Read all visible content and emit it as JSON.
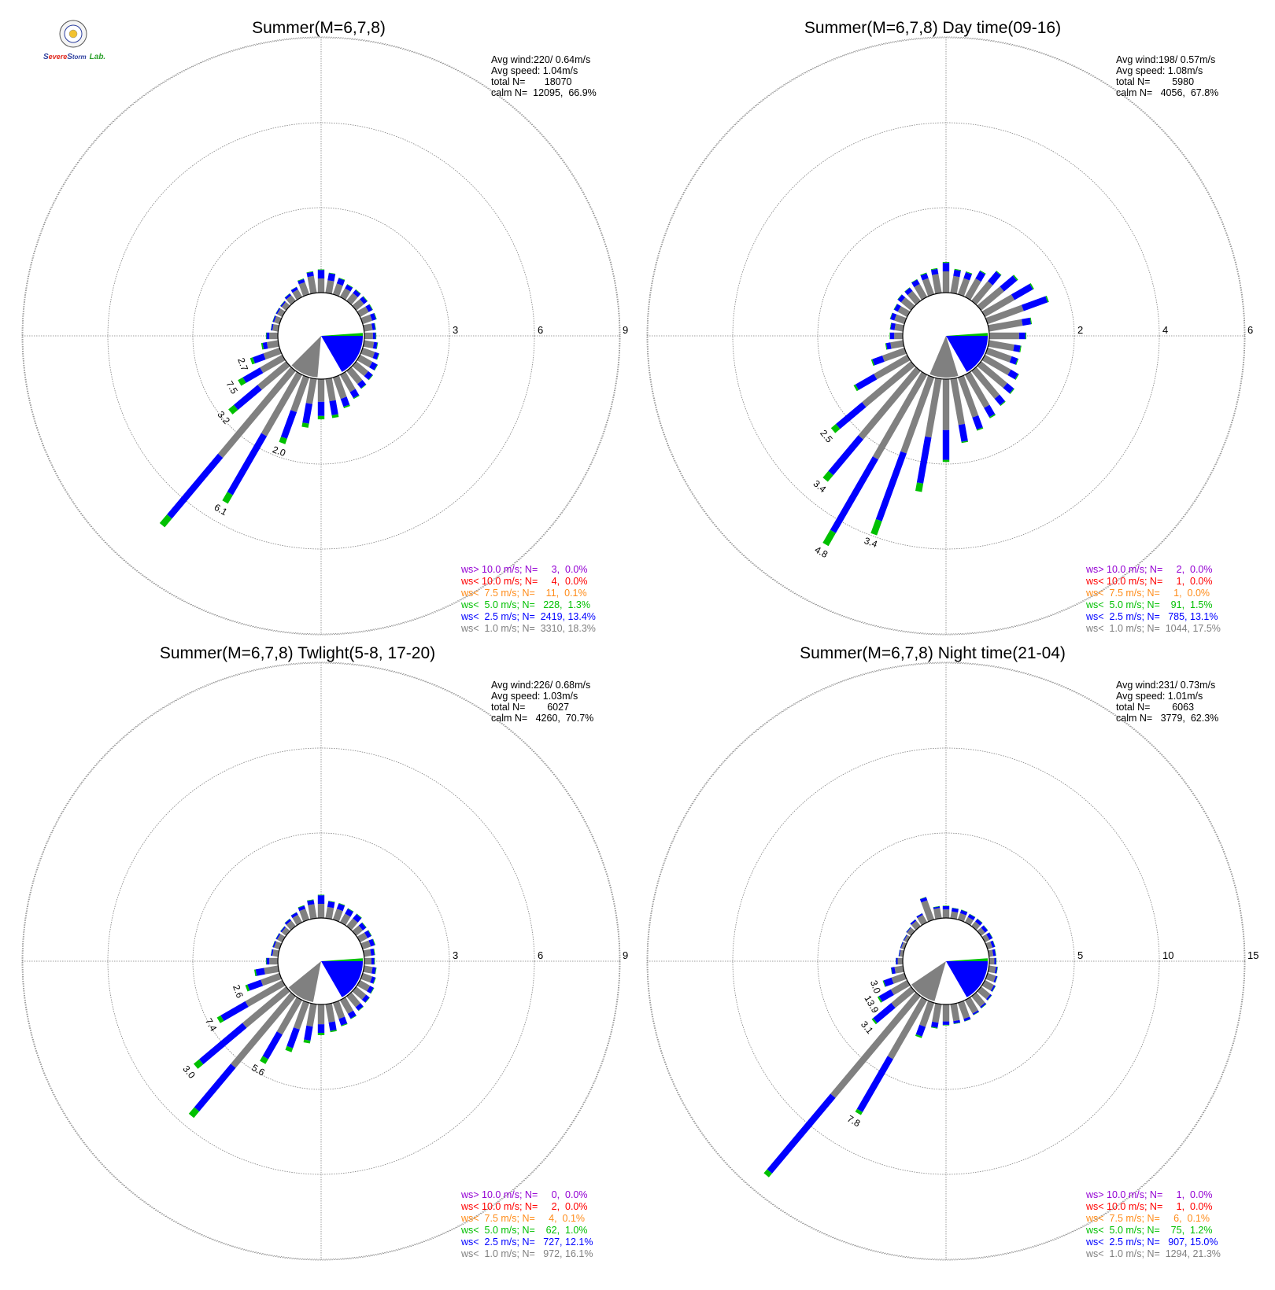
{
  "logo": {
    "text": [
      "S",
      "evere",
      "S",
      "torm",
      "Lab."
    ],
    "colors": [
      "#2c3e9e",
      "#e0261b",
      "#2ca02c"
    ]
  },
  "colors": {
    "calm_ring": "#000000",
    "grid": "#808080",
    "bin_lt1": "#808080",
    "bin_lt2_5": "#0000ff",
    "bin_lt5": "#00c000",
    "bin_lt7_5": "#ff8c1a",
    "bin_lt10": "#ff0000",
    "bin_gt10": "#9400d3"
  },
  "chart_data": [
    {
      "type": "windrose",
      "title": "Summer(M=6,7,8)",
      "rings": [
        3,
        6,
        9
      ],
      "stats": [
        "Avg wind:220/ 0.64m/s",
        "Avg speed: 1.04m/s",
        "total N=       18070",
        "calm N=  12095,  66.9%"
      ],
      "legend": [
        {
          "text": "ws> 10.0 m/s; N=     3,  0.0%",
          "color": "#9400d3"
        },
        {
          "text": "ws< 10.0 m/s; N=     4,  0.0%",
          "color": "#ff0000"
        },
        {
          "text": "ws<  7.5 m/s; N=    11,  0.1%",
          "color": "#ff8c1a"
        },
        {
          "text": "ws<  5.0 m/s; N=   228,  1.3%",
          "color": "#00c000"
        },
        {
          "text": "ws<  2.5 m/s; N=  2419, 13.4%",
          "color": "#0000ff"
        },
        {
          "text": "ws<  1.0 m/s; N=  3310, 18.3%",
          "color": "#808080"
        }
      ],
      "directions": [
        0,
        10,
        20,
        30,
        40,
        50,
        60,
        70,
        80,
        90,
        100,
        110,
        120,
        130,
        140,
        150,
        160,
        170,
        180,
        190,
        200,
        210,
        220,
        230,
        240,
        250,
        260,
        270,
        280,
        290,
        300,
        310,
        320,
        330,
        340,
        350
      ],
      "gray": [
        0.5,
        0.45,
        0.4,
        0.35,
        0.35,
        0.35,
        0.35,
        0.35,
        0.3,
        0.3,
        0.35,
        0.45,
        0.5,
        0.55,
        0.6,
        0.7,
        0.8,
        0.8,
        0.8,
        0.9,
        1.3,
        2.5,
        4.0,
        1.3,
        0.9,
        0.6,
        0.4,
        0.3,
        0.2,
        0.2,
        0.2,
        0.2,
        0.25,
        0.3,
        0.45,
        0.6
      ],
      "blue": [
        0.3,
        0.25,
        0.2,
        0.15,
        0.15,
        0.15,
        0.15,
        0.15,
        0.1,
        0.1,
        0.12,
        0.15,
        0.2,
        0.2,
        0.2,
        0.25,
        0.3,
        0.5,
        0.5,
        0.7,
        1.0,
        2.4,
        2.8,
        1.1,
        0.7,
        0.4,
        0.15,
        0.1,
        0.05,
        0.05,
        0.05,
        0.05,
        0.08,
        0.1,
        0.12,
        0.15
      ],
      "green": [
        0.02,
        0.02,
        0.02,
        0.02,
        0.02,
        0.02,
        0.02,
        0.02,
        0.02,
        0.02,
        0.02,
        0.02,
        0.02,
        0.02,
        0.02,
        0.03,
        0.05,
        0.1,
        0.12,
        0.15,
        0.2,
        0.35,
        0.4,
        0.25,
        0.2,
        0.1,
        0.05,
        0.02,
        0.01,
        0.01,
        0.01,
        0.01,
        0.01,
        0.01,
        0.02,
        0.02
      ],
      "bar_labels": [
        {
          "dir": 200,
          "text": "2.0"
        },
        {
          "dir": 210,
          "text": "6.1"
        },
        {
          "dir": 230,
          "text": "3.2"
        },
        {
          "dir": 240,
          "text": "7.5"
        },
        {
          "dir": 250,
          "text": "2.7"
        }
      ]
    },
    {
      "type": "windrose",
      "title": "Summer(M=6,7,8) Day time(09-16)",
      "rings": [
        2,
        4,
        6
      ],
      "stats": [
        "Avg wind:198/ 0.57m/s",
        "Avg speed: 1.08m/s",
        "total N=        5980",
        "calm N=   4056,  67.8%"
      ],
      "legend": [
        {
          "text": "ws> 10.0 m/s; N=     2,  0.0%",
          "color": "#9400d3"
        },
        {
          "text": "ws< 10.0 m/s; N=     1,  0.0%",
          "color": "#ff0000"
        },
        {
          "text": "ws<  7.5 m/s; N=     1,  0.0%",
          "color": "#ff8c1a"
        },
        {
          "text": "ws<  5.0 m/s; N=    91,  1.5%",
          "color": "#00c000"
        },
        {
          "text": "ws<  2.5 m/s; N=   785, 13.1%",
          "color": "#0000ff"
        },
        {
          "text": "ws<  1.0 m/s; N=  1044, 17.5%",
          "color": "#808080"
        }
      ],
      "directions": [
        0,
        10,
        20,
        30,
        40,
        50,
        60,
        70,
        80,
        90,
        100,
        110,
        120,
        130,
        140,
        150,
        160,
        170,
        180,
        190,
        200,
        210,
        220,
        230,
        240,
        250,
        260,
        270,
        280,
        290,
        300,
        310,
        320,
        330,
        340,
        350
      ],
      "gray": [
        0.5,
        0.4,
        0.4,
        0.5,
        0.6,
        0.7,
        0.8,
        0.9,
        0.8,
        0.7,
        0.6,
        0.6,
        0.7,
        0.8,
        0.85,
        0.9,
        1.0,
        1.1,
        1.2,
        1.4,
        1.9,
        2.3,
        2.1,
        1.5,
        0.9,
        0.55,
        0.3,
        0.2,
        0.2,
        0.25,
        0.25,
        0.3,
        0.3,
        0.35,
        0.4,
        0.45
      ],
      "blue": [
        0.2,
        0.15,
        0.15,
        0.2,
        0.3,
        0.4,
        0.5,
        0.6,
        0.2,
        0.15,
        0.15,
        0.15,
        0.2,
        0.2,
        0.2,
        0.25,
        0.3,
        0.4,
        0.7,
        1.1,
        1.7,
        2.0,
        1.1,
        0.8,
        0.5,
        0.25,
        0.1,
        0.1,
        0.1,
        0.1,
        0.1,
        0.1,
        0.1,
        0.12,
        0.12,
        0.12
      ],
      "green": [
        0.02,
        0.02,
        0.02,
        0.02,
        0.02,
        0.03,
        0.03,
        0.03,
        0.02,
        0.02,
        0.02,
        0.02,
        0.02,
        0.02,
        0.02,
        0.03,
        0.03,
        0.03,
        0.05,
        0.2,
        0.35,
        0.35,
        0.2,
        0.15,
        0.05,
        0.03,
        0.02,
        0.01,
        0.01,
        0.01,
        0.01,
        0.01,
        0.01,
        0.01,
        0.02,
        0.02
      ],
      "bar_labels": [
        {
          "dir": 200,
          "text": "3.4"
        },
        {
          "dir": 210,
          "text": "4.8"
        },
        {
          "dir": 220,
          "text": "3.4"
        },
        {
          "dir": 230,
          "text": "2.5"
        }
      ]
    },
    {
      "type": "windrose",
      "title": "Summer(M=6,7,8) Twlight(5-8, 17-20)",
      "rings": [
        3,
        6,
        9
      ],
      "stats": [
        "Avg wind:226/ 0.68m/s",
        "Avg speed: 1.03m/s",
        "total N=        6027",
        "calm N=   4260,  70.7%"
      ],
      "legend": [
        {
          "text": "ws> 10.0 m/s; N=     0,  0.0%",
          "color": "#9400d3"
        },
        {
          "text": "ws< 10.0 m/s; N=     2,  0.0%",
          "color": "#ff0000"
        },
        {
          "text": "ws<  7.5 m/s; N=     4,  0.1%",
          "color": "#ff8c1a"
        },
        {
          "text": "ws<  5.0 m/s; N=    62,  1.0%",
          "color": "#00c000"
        },
        {
          "text": "ws<  2.5 m/s; N=   727, 12.1%",
          "color": "#0000ff"
        },
        {
          "text": "ws<  1.0 m/s; N=   972, 16.1%",
          "color": "#808080"
        }
      ],
      "directions": [
        0,
        10,
        20,
        30,
        40,
        50,
        60,
        70,
        80,
        90,
        100,
        110,
        120,
        130,
        140,
        150,
        160,
        170,
        180,
        190,
        200,
        210,
        220,
        230,
        240,
        250,
        260,
        270,
        280,
        290,
        300,
        310,
        320,
        330,
        340,
        350
      ],
      "gray": [
        0.5,
        0.4,
        0.4,
        0.35,
        0.35,
        0.3,
        0.3,
        0.3,
        0.25,
        0.25,
        0.3,
        0.35,
        0.4,
        0.45,
        0.5,
        0.55,
        0.6,
        0.65,
        0.7,
        0.8,
        1.0,
        1.4,
        3.3,
        2.0,
        1.5,
        0.7,
        0.5,
        0.3,
        0.2,
        0.2,
        0.2,
        0.2,
        0.25,
        0.3,
        0.4,
        0.5
      ],
      "blue": [
        0.3,
        0.2,
        0.2,
        0.2,
        0.2,
        0.15,
        0.15,
        0.15,
        0.12,
        0.1,
        0.12,
        0.12,
        0.15,
        0.15,
        0.15,
        0.2,
        0.25,
        0.3,
        0.3,
        0.5,
        0.7,
        1.0,
        2.0,
        2.0,
        1.0,
        0.5,
        0.3,
        0.1,
        0.05,
        0.05,
        0.05,
        0.05,
        0.08,
        0.1,
        0.12,
        0.15
      ],
      "green": [
        0.02,
        0.02,
        0.02,
        0.02,
        0.02,
        0.02,
        0.02,
        0.02,
        0.02,
        0.02,
        0.02,
        0.02,
        0.02,
        0.02,
        0.02,
        0.02,
        0.03,
        0.05,
        0.08,
        0.1,
        0.15,
        0.2,
        0.3,
        0.25,
        0.15,
        0.08,
        0.05,
        0.02,
        0.01,
        0.01,
        0.01,
        0.01,
        0.01,
        0.01,
        0.02,
        0.02
      ],
      "bar_labels": [
        {
          "dir": 210,
          "text": "5.6"
        },
        {
          "dir": 230,
          "text": "3.0"
        },
        {
          "dir": 240,
          "text": "7.4"
        },
        {
          "dir": 250,
          "text": "2.6"
        }
      ]
    },
    {
      "type": "windrose",
      "title": "Summer(M=6,7,8) Night time(21-04)",
      "rings": [
        5,
        10,
        15
      ],
      "stats": [
        "Avg wind:231/ 0.73m/s",
        "Avg speed: 1.01m/s",
        "total N=        6063",
        "calm N=   3779,  62.3%"
      ],
      "legend": [
        {
          "text": "ws> 10.0 m/s; N=     1,  0.0%",
          "color": "#9400d3"
        },
        {
          "text": "ws< 10.0 m/s; N=     1,  0.0%",
          "color": "#ff0000"
        },
        {
          "text": "ws<  7.5 m/s; N=     6,  0.1%",
          "color": "#ff8c1a"
        },
        {
          "text": "ws<  5.0 m/s; N=    75,  1.2%",
          "color": "#00c000"
        },
        {
          "text": "ws<  2.5 m/s; N=   907, 15.0%",
          "color": "#0000ff"
        },
        {
          "text": "ws<  1.0 m/s; N=  1294, 21.3%",
          "color": "#808080"
        }
      ],
      "directions": [
        0,
        10,
        20,
        30,
        40,
        50,
        60,
        70,
        80,
        90,
        100,
        110,
        120,
        130,
        140,
        150,
        160,
        170,
        180,
        190,
        200,
        210,
        220,
        230,
        240,
        250,
        260,
        270,
        280,
        290,
        300,
        310,
        320,
        330,
        340,
        350
      ],
      "gray": [
        0.5,
        0.4,
        0.4,
        0.35,
        0.35,
        0.3,
        0.3,
        0.3,
        0.25,
        0.3,
        0.4,
        0.5,
        0.6,
        0.7,
        0.8,
        0.9,
        1.0,
        1.0,
        1.0,
        1.1,
        1.5,
        4.0,
        7.8,
        1.5,
        1.1,
        0.8,
        0.5,
        0.3,
        0.2,
        0.2,
        0.2,
        0.3,
        0.4,
        0.5,
        1.2,
        0.6
      ],
      "blue": [
        0.2,
        0.2,
        0.2,
        0.2,
        0.2,
        0.2,
        0.2,
        0.15,
        0.15,
        0.1,
        0.1,
        0.1,
        0.1,
        0.1,
        0.1,
        0.1,
        0.15,
        0.15,
        0.2,
        0.3,
        0.6,
        3.6,
        5.8,
        1.4,
        0.8,
        0.5,
        0.2,
        0.1,
        0.05,
        0.05,
        0.05,
        0.05,
        0.1,
        0.1,
        0.2,
        0.1
      ],
      "green": [
        0.02,
        0.02,
        0.02,
        0.02,
        0.02,
        0.02,
        0.02,
        0.02,
        0.02,
        0.02,
        0.02,
        0.02,
        0.02,
        0.02,
        0.02,
        0.02,
        0.02,
        0.03,
        0.03,
        0.05,
        0.1,
        0.2,
        0.3,
        0.1,
        0.1,
        0.05,
        0.02,
        0.01,
        0.01,
        0.01,
        0.01,
        0.01,
        0.01,
        0.01,
        0.02,
        0.02
      ],
      "bar_labels": [
        {
          "dir": 210,
          "text": "7.8"
        },
        {
          "dir": 230,
          "text": "3.1"
        },
        {
          "dir": 240,
          "text": "13.9"
        },
        {
          "dir": 250,
          "text": "3.0"
        }
      ]
    }
  ]
}
